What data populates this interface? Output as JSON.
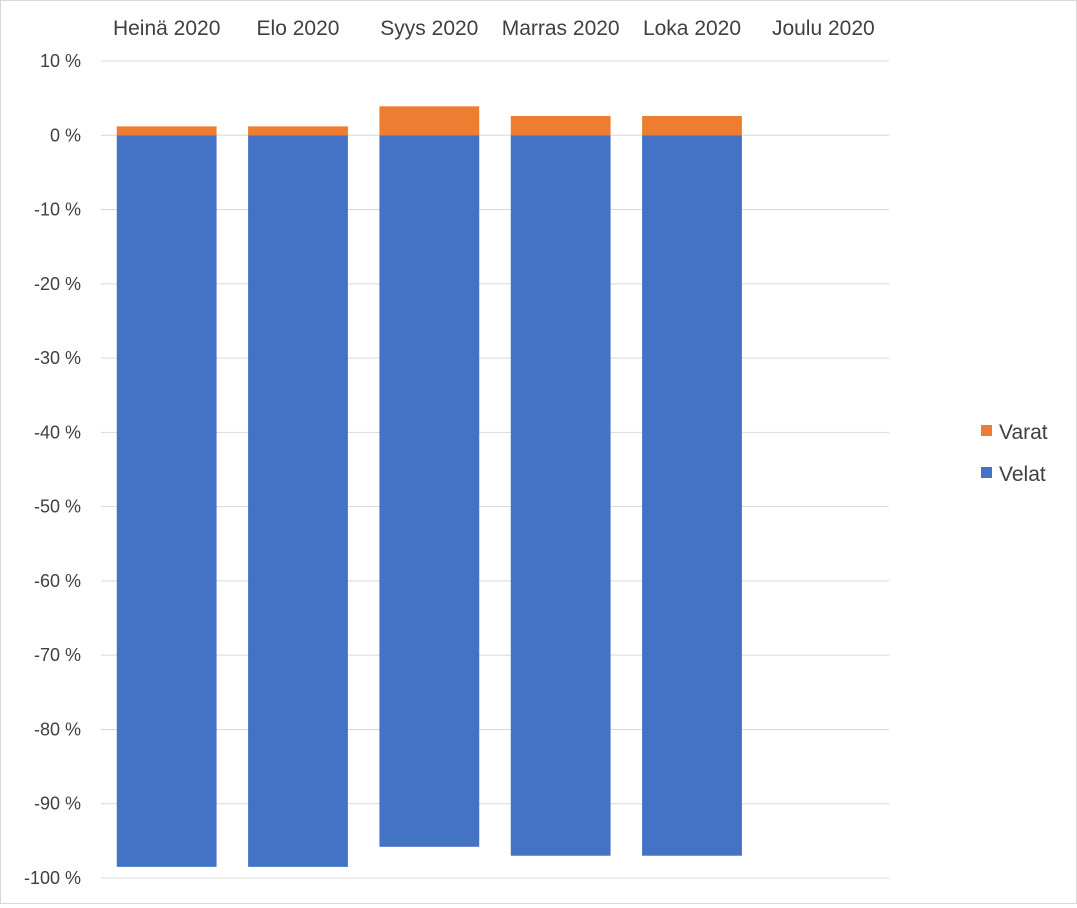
{
  "chart_data": {
    "type": "bar",
    "stacked": true,
    "categories": [
      "Heinä 2020",
      "Elo 2020",
      "Syys 2020",
      "Marras 2020",
      "Loka 2020",
      "Joulu 2020"
    ],
    "series": [
      {
        "name": "Varat",
        "color": "#ED7D31",
        "values": [
          1.2,
          1.2,
          3.9,
          2.6,
          2.6,
          null
        ]
      },
      {
        "name": "Velat",
        "color": "#4472C4",
        "values": [
          -98.5,
          -98.5,
          -95.8,
          -97.0,
          -97.0,
          null
        ]
      }
    ],
    "ylim": [
      -100,
      10
    ],
    "yticks": [
      10,
      0,
      -10,
      -20,
      -30,
      -40,
      -50,
      -60,
      -70,
      -80,
      -90,
      -100
    ],
    "ytick_suffix": " %",
    "xaxis_position": "top",
    "grid": true,
    "legend_position": "right",
    "colors": {
      "gridline": "#D9D9D9",
      "text": "#404040"
    }
  }
}
